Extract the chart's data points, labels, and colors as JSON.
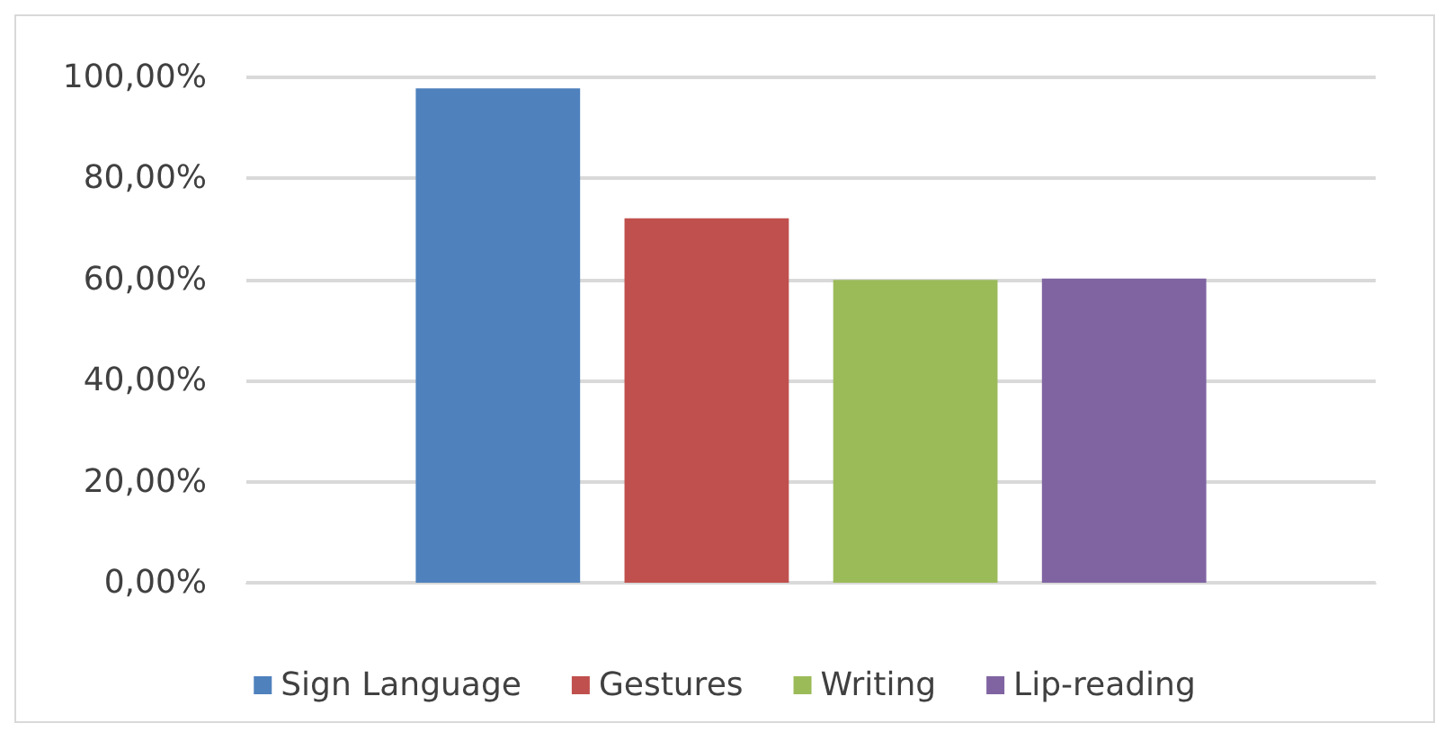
{
  "chart_data": {
    "type": "bar",
    "categories": [
      null
    ],
    "series": [
      {
        "name": "Sign Language",
        "color": "#4f81bd",
        "values": [
          97.8
        ]
      },
      {
        "name": "Gestures",
        "color": "#c0504d",
        "values": [
          72.1
        ]
      },
      {
        "name": "Writing",
        "color": "#9bbb59",
        "values": [
          59.9
        ]
      },
      {
        "name": "Lip-reading",
        "color": "#8064a2",
        "values": [
          60.2
        ]
      }
    ],
    "ylim": [
      0,
      100
    ],
    "yticks": [
      {
        "value": 0,
        "label": "0,00%"
      },
      {
        "value": 20,
        "label": "20,00%"
      },
      {
        "value": 40,
        "label": "40,00%"
      },
      {
        "value": 60,
        "label": "60,00%"
      },
      {
        "value": 80,
        "label": "80,00%"
      },
      {
        "value": 100,
        "label": "100,00%"
      }
    ],
    "grid": "y",
    "legend": "bottom"
  }
}
